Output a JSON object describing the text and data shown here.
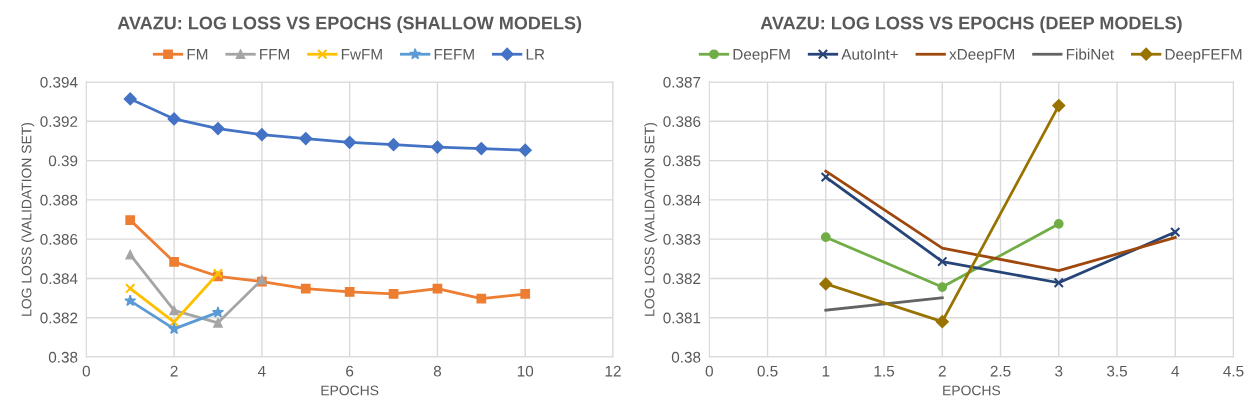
{
  "chart_data": [
    {
      "type": "line",
      "title": "AVAZU: LOG LOSS VS EPOCHS (SHALLOW MODELS)",
      "xlabel": "EPOCHS",
      "ylabel": "LOG LOSS (VALIDATION SET)",
      "xlim": [
        0,
        12
      ],
      "xticks": [
        0,
        2,
        4,
        6,
        8,
        10,
        12
      ],
      "ylim": [
        0.38,
        0.394
      ],
      "yticks": [
        0.38,
        0.382,
        0.384,
        0.386,
        0.388,
        0.39,
        0.392,
        0.394
      ],
      "grid": true,
      "legend": "top",
      "series": [
        {
          "name": "FM",
          "color": "#ed7d31",
          "marker": "square",
          "x": [
            1,
            2,
            3,
            4,
            5,
            6,
            7,
            8,
            9,
            10
          ],
          "values": [
            0.38697,
            0.38484,
            0.38411,
            0.38384,
            0.38348,
            0.38331,
            0.38321,
            0.38348,
            0.38297,
            0.38321
          ]
        },
        {
          "name": "FFM",
          "color": "#a5a5a5",
          "marker": "triangle",
          "x": [
            1,
            2,
            3,
            4
          ],
          "values": [
            0.38521,
            0.38237,
            0.38174,
            0.38394
          ]
        },
        {
          "name": "FwFM",
          "color": "#ffc000",
          "marker": "cross",
          "x": [
            1,
            2,
            3
          ],
          "values": [
            0.38349,
            0.38178,
            0.38425
          ]
        },
        {
          "name": "FEFM",
          "color": "#5b9bd5",
          "marker": "star",
          "x": [
            1,
            2,
            3
          ],
          "values": [
            0.38286,
            0.38143,
            0.38227
          ]
        },
        {
          "name": "LR",
          "color": "#4472c4",
          "marker": "diamond",
          "x": [
            1,
            2,
            3,
            4,
            5,
            6,
            7,
            8,
            9,
            10
          ],
          "values": [
            0.39314,
            0.39212,
            0.39163,
            0.39132,
            0.39112,
            0.39093,
            0.39081,
            0.39069,
            0.39061,
            0.39053
          ]
        }
      ]
    },
    {
      "type": "line",
      "title": "AVAZU: LOG LOSS VS EPOCHS (DEEP MODELS)",
      "xlabel": "EPOCHS",
      "ylabel": "LOG LOSS (VALIDATION SET)",
      "xlim": [
        0,
        4.5
      ],
      "xticks": [
        0,
        0.5,
        1,
        1.5,
        2,
        2.5,
        3,
        3.5,
        4,
        4.5
      ],
      "ylim": [
        0.38,
        0.387
      ],
      "yticks": [
        0.38,
        0.381,
        0.382,
        0.383,
        0.384,
        0.385,
        0.386,
        0.387
      ],
      "grid": true,
      "legend": "top",
      "series": [
        {
          "name": "DeepFM",
          "color": "#70ad47",
          "marker": "circle",
          "x": [
            1,
            2,
            3
          ],
          "values": [
            0.38305,
            0.38178,
            0.38339
          ]
        },
        {
          "name": "AutoInt+",
          "color": "#264478",
          "marker": "cross",
          "x": [
            1,
            2,
            3,
            4
          ],
          "values": [
            0.38458,
            0.38243,
            0.38189,
            0.38318
          ]
        },
        {
          "name": "xDeepFM",
          "color": "#9e480e",
          "marker": "none",
          "x": [
            1,
            2,
            3,
            4
          ],
          "values": [
            0.38473,
            0.38277,
            0.3822,
            0.38304
          ]
        },
        {
          "name": "FibiNet",
          "color": "#636363",
          "marker": "none",
          "x": [
            1,
            2
          ],
          "values": [
            0.38119,
            0.38151
          ]
        },
        {
          "name": "DeepFEFM",
          "color": "#997300",
          "marker": "diamond",
          "x": [
            1,
            2,
            3
          ],
          "values": [
            0.38186,
            0.3809,
            0.3864
          ]
        }
      ]
    }
  ]
}
